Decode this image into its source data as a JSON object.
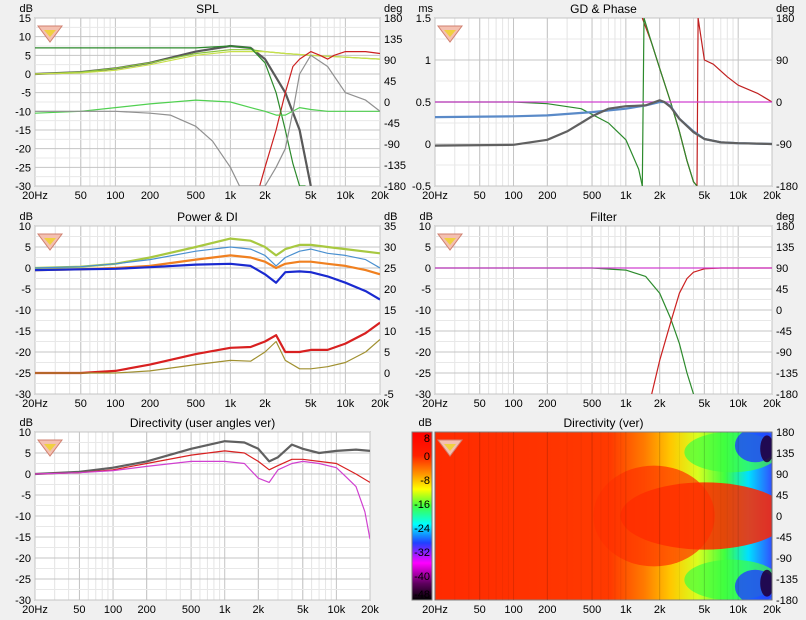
{
  "panels": [
    {
      "id": "spl",
      "title": "SPL",
      "left_unit": "dB",
      "right_unit": "deg",
      "yticks": [
        "15",
        "10",
        "5",
        "0",
        "-5",
        "-10",
        "-15",
        "-20",
        "-25",
        "-30"
      ],
      "rticks": [
        "180",
        "135",
        "90",
        "45",
        "0",
        "-45",
        "-90",
        "-135",
        "-180"
      ],
      "xticks": [
        "20Hz",
        "50",
        "100",
        "200",
        "500",
        "1k",
        "2k",
        "5k",
        "10k",
        "20k"
      ]
    },
    {
      "id": "gd-phase",
      "title": "GD & Phase",
      "left_unit": "ms",
      "right_unit": "deg",
      "yticks": [
        "1.5",
        "1",
        "0.5",
        "0",
        "-0.5"
      ],
      "rticks": [
        "180",
        "90",
        "0",
        "-90",
        "-180"
      ],
      "xticks": [
        "20Hz",
        "50",
        "100",
        "200",
        "500",
        "1k",
        "2k",
        "5k",
        "10k",
        "20k"
      ]
    },
    {
      "id": "power-di",
      "title": "Power & DI",
      "left_unit": "dB",
      "right_unit": "dB",
      "yticks": [
        "10",
        "5",
        "0",
        "-5",
        "-10",
        "-15",
        "-20",
        "-25",
        "-30"
      ],
      "rticks": [
        "35",
        "30",
        "25",
        "20",
        "15",
        "10",
        "5",
        "0",
        "-5"
      ],
      "xticks": [
        "20Hz",
        "50",
        "100",
        "200",
        "500",
        "1k",
        "2k",
        "5k",
        "10k",
        "20k"
      ]
    },
    {
      "id": "filter",
      "title": "Filter",
      "left_unit": "dB",
      "right_unit": "deg",
      "yticks": [
        "10",
        "5",
        "0",
        "-5",
        "-10",
        "-15",
        "-20",
        "-25",
        "-30"
      ],
      "rticks": [
        "180",
        "135",
        "90",
        "45",
        "0",
        "-45",
        "-90",
        "-135",
        "-180"
      ],
      "xticks": [
        "20Hz",
        "50",
        "100",
        "200",
        "500",
        "1k",
        "2k",
        "5k",
        "10k",
        "20k"
      ]
    },
    {
      "id": "directivity",
      "title": "Directivity (user angles ver)",
      "left_unit": "dB",
      "right_unit": "",
      "yticks": [
        "10",
        "5",
        "0",
        "-5",
        "-10",
        "-15",
        "-20",
        "-25",
        "-30"
      ],
      "rticks": [],
      "xticks": [
        "20Hz",
        "50",
        "100",
        "200",
        "500",
        "1k",
        "2k",
        "5k",
        "10k",
        "20k"
      ]
    },
    {
      "id": "directivity-map",
      "title": "Directivity (ver)",
      "left_unit": "dB",
      "right_unit": "",
      "yticks": [
        "8",
        "0",
        "-8",
        "-16",
        "-24",
        "-32",
        "-40",
        "-48"
      ],
      "rticks": [
        "180",
        "135",
        "90",
        "45",
        "0",
        "-45",
        "-90",
        "-135",
        "-180"
      ],
      "xticks": [
        "20Hz",
        "50",
        "100",
        "200",
        "500",
        "1k",
        "2k",
        "5k",
        "10k",
        "20k"
      ]
    }
  ],
  "chart_data": [
    {
      "type": "line",
      "title": "SPL",
      "ylim": [
        -30,
        15
      ],
      "y2lim": [
        -180,
        180
      ],
      "xlim": [
        20,
        20000
      ],
      "xscale": "log",
      "series": [
        {
          "color": "#595959",
          "x": [
            20,
            50,
            100,
            200,
            500,
            1000,
            1500,
            2000,
            3000,
            4000,
            5000
          ],
          "y": [
            0,
            0.5,
            1.5,
            3,
            6,
            7.5,
            7,
            4,
            -5,
            -15,
            -30
          ]
        },
        {
          "color": "#88c43a",
          "x": [
            20,
            50,
            100,
            200,
            500,
            1000,
            1500,
            2000,
            3000,
            5000,
            10000,
            20000
          ],
          "y": [
            0,
            0.5,
            1.5,
            3,
            5.5,
            6.5,
            6.5,
            6,
            5.5,
            5,
            4.5,
            4
          ]
        },
        {
          "color": "#c8e04a",
          "x": [
            20,
            50,
            100,
            200,
            500,
            1000,
            2000,
            3000,
            5000,
            10000,
            20000
          ],
          "y": [
            0,
            0.3,
            1,
            2.5,
            5,
            6,
            6,
            5.5,
            5,
            4.5,
            4
          ]
        },
        {
          "color": "#cc2020",
          "x": [
            1800,
            2000,
            2500,
            3000,
            3500,
            4000,
            5000,
            6000,
            7000,
            8000,
            10000,
            15000,
            20000
          ],
          "y": [
            -30,
            -25,
            -15,
            -5,
            2,
            4,
            6,
            5,
            4,
            5,
            6,
            6,
            5.5
          ]
        },
        {
          "color": "#2c8a2c",
          "x": [
            20,
            100,
            500,
            1000,
            1500,
            2000,
            2500,
            3000,
            3500,
            4000,
            4500
          ],
          "y": [
            7,
            7,
            7,
            7.5,
            7,
            3,
            -5,
            -15,
            -24,
            -30,
            -30
          ]
        },
        {
          "color": "#50d050",
          "x": [
            20,
            50,
            100,
            200,
            500,
            1000,
            1500,
            2000,
            2500,
            3000,
            4000,
            5000,
            7000,
            10000,
            20000
          ],
          "y": [
            -10.5,
            -10,
            -9,
            -8,
            -7,
            -7.5,
            -9,
            -10,
            -11,
            -11,
            -9,
            -9.5,
            -10,
            -10,
            -10
          ]
        },
        {
          "color": "#909090",
          "x": [
            20,
            100,
            200,
            300,
            500,
            700,
            1000,
            1200,
            1500,
            1800,
            2000,
            2500,
            3000,
            3500,
            4000,
            5000,
            7000,
            10000,
            15000,
            20000
          ],
          "y": [
            -10,
            -10,
            -10.5,
            -11,
            -14,
            -18,
            -25,
            -30,
            -30,
            -30,
            -30,
            -25,
            -20,
            -10,
            0,
            5,
            2,
            -5,
            -7,
            -10
          ]
        }
      ]
    },
    {
      "type": "line",
      "title": "GD & Phase",
      "ylim": [
        -0.5,
        1.5
      ],
      "y2lim": [
        -180,
        180
      ],
      "xlim": [
        20,
        20000
      ],
      "xscale": "log",
      "series": [
        {
          "color": "#c02020",
          "x": [
            1400,
            1700,
            2000,
            2500,
            3000,
            3500,
            4000,
            4300
          ],
          "y": [
            1.5,
            1.2,
            0.9,
            0.5,
            0.15,
            -0.2,
            -0.45,
            -0.5
          ]
        },
        {
          "color": "#c02020",
          "x": [
            4300,
            4400,
            5000,
            6000,
            8000,
            10000,
            15000,
            20000
          ],
          "y": [
            -0.5,
            1.5,
            1.0,
            0.95,
            0.8,
            0.7,
            0.6,
            0.5
          ]
        },
        {
          "color": "#2c8a2c",
          "x": [
            20,
            100,
            200,
            400,
            700,
            1000,
            1300,
            1400
          ],
          "y": [
            0.5,
            0.5,
            0.48,
            0.42,
            0.25,
            0.05,
            -0.3,
            -0.5
          ]
        },
        {
          "color": "#2c8a2c",
          "x": [
            1400,
            1450,
            1700,
            2000,
            2500,
            3000,
            3500,
            4000,
            4300
          ],
          "y": [
            -0.5,
            1.5,
            1.2,
            0.9,
            0.5,
            0.15,
            -0.2,
            -0.45,
            -0.5
          ]
        },
        {
          "color": "#d040d0",
          "x": [
            20,
            1000,
            2000,
            5000,
            20000
          ],
          "y": [
            0.5,
            0.5,
            0.5,
            0.5,
            0.5
          ]
        },
        {
          "color": "#5a8ac8",
          "x": [
            20,
            100,
            200,
            500,
            1000,
            1500,
            2000,
            2200,
            2500,
            3000,
            4000,
            5000,
            7000,
            10000,
            20000
          ],
          "y": [
            0.32,
            0.33,
            0.34,
            0.38,
            0.42,
            0.46,
            0.5,
            0.5,
            0.45,
            0.3,
            0.15,
            0.06,
            0.02,
            0.01,
            0
          ]
        },
        {
          "color": "#606060",
          "x": [
            20,
            100,
            200,
            300,
            400,
            500,
            700,
            1000,
            1500,
            2000,
            2200,
            2500,
            3000,
            4000,
            5000,
            7000,
            10000,
            20000
          ],
          "y": [
            -0.02,
            -0.01,
            0.05,
            0.15,
            0.25,
            0.33,
            0.42,
            0.45,
            0.46,
            0.52,
            0.5,
            0.44,
            0.3,
            0.14,
            0.06,
            0.02,
            0.01,
            0
          ]
        }
      ]
    },
    {
      "type": "line",
      "title": "Power & DI",
      "ylim": [
        -30,
        10
      ],
      "y2lim": [
        -5,
        35
      ],
      "xlim": [
        20,
        20000
      ],
      "xscale": "log",
      "series": [
        {
          "color": "#a8c840",
          "x": [
            20,
            50,
            100,
            200,
            500,
            1000,
            1500,
            2000,
            2500,
            3000,
            4000,
            5000,
            7000,
            10000,
            20000
          ],
          "y": [
            0,
            0.3,
            1,
            2.5,
            5,
            7,
            6.5,
            5,
            3,
            4.5,
            5.5,
            5.5,
            5,
            4.5,
            3.5
          ]
        },
        {
          "color": "#4a90d0",
          "x": [
            20,
            50,
            100,
            200,
            500,
            1000,
            1500,
            2000,
            2500,
            3000,
            4000,
            5000,
            7000,
            10000,
            15000,
            20000
          ],
          "y": [
            0,
            0.3,
            1,
            2,
            4,
            5,
            4.5,
            3,
            0.5,
            2.5,
            4,
            4.5,
            3.5,
            3,
            2,
            0
          ]
        },
        {
          "color": "#f08020",
          "x": [
            20,
            50,
            100,
            200,
            500,
            1000,
            1500,
            2000,
            2500,
            3000,
            4000,
            5000,
            7000,
            10000,
            15000,
            20000
          ],
          "y": [
            -0.5,
            -0.3,
            0,
            0.5,
            2,
            3,
            2.5,
            1.5,
            0,
            1,
            1.5,
            1.5,
            1,
            0.5,
            -0.5,
            -1.5
          ]
        },
        {
          "color": "#1a2ad0",
          "x": [
            20,
            50,
            100,
            200,
            500,
            1000,
            1500,
            2000,
            2500,
            3000,
            4000,
            5000,
            7000,
            10000,
            15000,
            20000
          ],
          "y": [
            -0.5,
            -0.3,
            -0.2,
            0.2,
            0.8,
            1,
            0.5,
            -1.5,
            -3.5,
            -1,
            -0.8,
            -1,
            -2,
            -3.5,
            -5.5,
            -7.5
          ]
        },
        {
          "color": "#d82020",
          "x": [
            20,
            50,
            100,
            200,
            500,
            1000,
            1500,
            2000,
            2500,
            3000,
            4000,
            5000,
            7000,
            10000,
            15000,
            20000
          ],
          "y": [
            -25,
            -25,
            -24.5,
            -23,
            -20.5,
            -19,
            -18.8,
            -17.5,
            -16,
            -20,
            -20,
            -19.5,
            -19.5,
            -18,
            -15.5,
            -13
          ]
        },
        {
          "color": "#a09030",
          "x": [
            20,
            50,
            100,
            200,
            500,
            1000,
            1500,
            2000,
            2500,
            3000,
            4000,
            5000,
            7000,
            10000,
            15000,
            20000
          ],
          "y": [
            -25,
            -25,
            -25,
            -24.5,
            -23,
            -22,
            -22.2,
            -20,
            -17.5,
            -22,
            -24,
            -24,
            -23.5,
            -22.5,
            -20,
            -17
          ]
        }
      ]
    },
    {
      "type": "line",
      "title": "Filter",
      "ylim": [
        -30,
        10
      ],
      "y2lim": [
        -180,
        180
      ],
      "xlim": [
        20,
        20000
      ],
      "xscale": "log",
      "series": [
        {
          "color": "#2c8a2c",
          "x": [
            20,
            500,
            1000,
            1500,
            2000,
            2500,
            3000,
            3500,
            4000
          ],
          "y": [
            0,
            0,
            -0.5,
            -2,
            -6,
            -12,
            -18,
            -25,
            -30
          ]
        },
        {
          "color": "#cc2020",
          "x": [
            1700,
            2000,
            2500,
            3000,
            3500,
            4000,
            5000,
            7000,
            20000
          ],
          "y": [
            -30,
            -22,
            -13,
            -6,
            -2.5,
            -1,
            -0.2,
            0,
            0
          ]
        },
        {
          "color": "#d040d0",
          "x": [
            20,
            1000,
            1500,
            2000,
            2500,
            3000,
            3500,
            4000,
            5000,
            7000,
            20000
          ],
          "y": [
            0,
            0,
            0,
            0,
            0,
            0,
            0,
            0,
            0,
            0,
            0
          ]
        }
      ]
    },
    {
      "type": "line",
      "title": "Directivity (user angles ver)",
      "ylim": [
        -30,
        10
      ],
      "xlim": [
        20,
        20000
      ],
      "xscale": "log",
      "series": [
        {
          "color": "#606060",
          "x": [
            20,
            50,
            100,
            200,
            500,
            1000,
            1500,
            2000,
            2500,
            3000,
            4000,
            5000,
            7000,
            10000,
            15000,
            20000
          ],
          "y": [
            0,
            0.5,
            1.5,
            3,
            6,
            7.8,
            7.5,
            6,
            3,
            4,
            7,
            6,
            5,
            5.5,
            5.8,
            5.5
          ]
        },
        {
          "color": "#d82020",
          "x": [
            20,
            50,
            100,
            200,
            500,
            1000,
            1500,
            2000,
            2500,
            3000,
            4000,
            5000,
            7000,
            10000,
            15000,
            20000
          ],
          "y": [
            0,
            0.3,
            1,
            2.5,
            4.5,
            5.5,
            5,
            3,
            1,
            2,
            3.5,
            3.5,
            3,
            2.5,
            0,
            -2
          ]
        },
        {
          "color": "#d040d0",
          "x": [
            20,
            50,
            100,
            200,
            500,
            1000,
            1500,
            2000,
            2500,
            3000,
            4000,
            5000,
            7000,
            10000,
            12000,
            15000,
            18000,
            20000
          ],
          "y": [
            0,
            0.3,
            0.8,
            1.8,
            3,
            3,
            2.5,
            -1,
            -2,
            1,
            2.5,
            3,
            2.5,
            1.5,
            -0.5,
            -3,
            -9,
            -15.5
          ]
        }
      ]
    },
    {
      "type": "heatmap",
      "title": "Directivity (ver)",
      "xlim": [
        20,
        20000
      ],
      "xscale": "log",
      "y2lim": [
        -180,
        180
      ],
      "colorbar": {
        "range": [
          -48,
          8
        ],
        "ticks": [
          8,
          0,
          -8,
          -16,
          -24,
          -32,
          -40,
          -48
        ]
      }
    }
  ]
}
